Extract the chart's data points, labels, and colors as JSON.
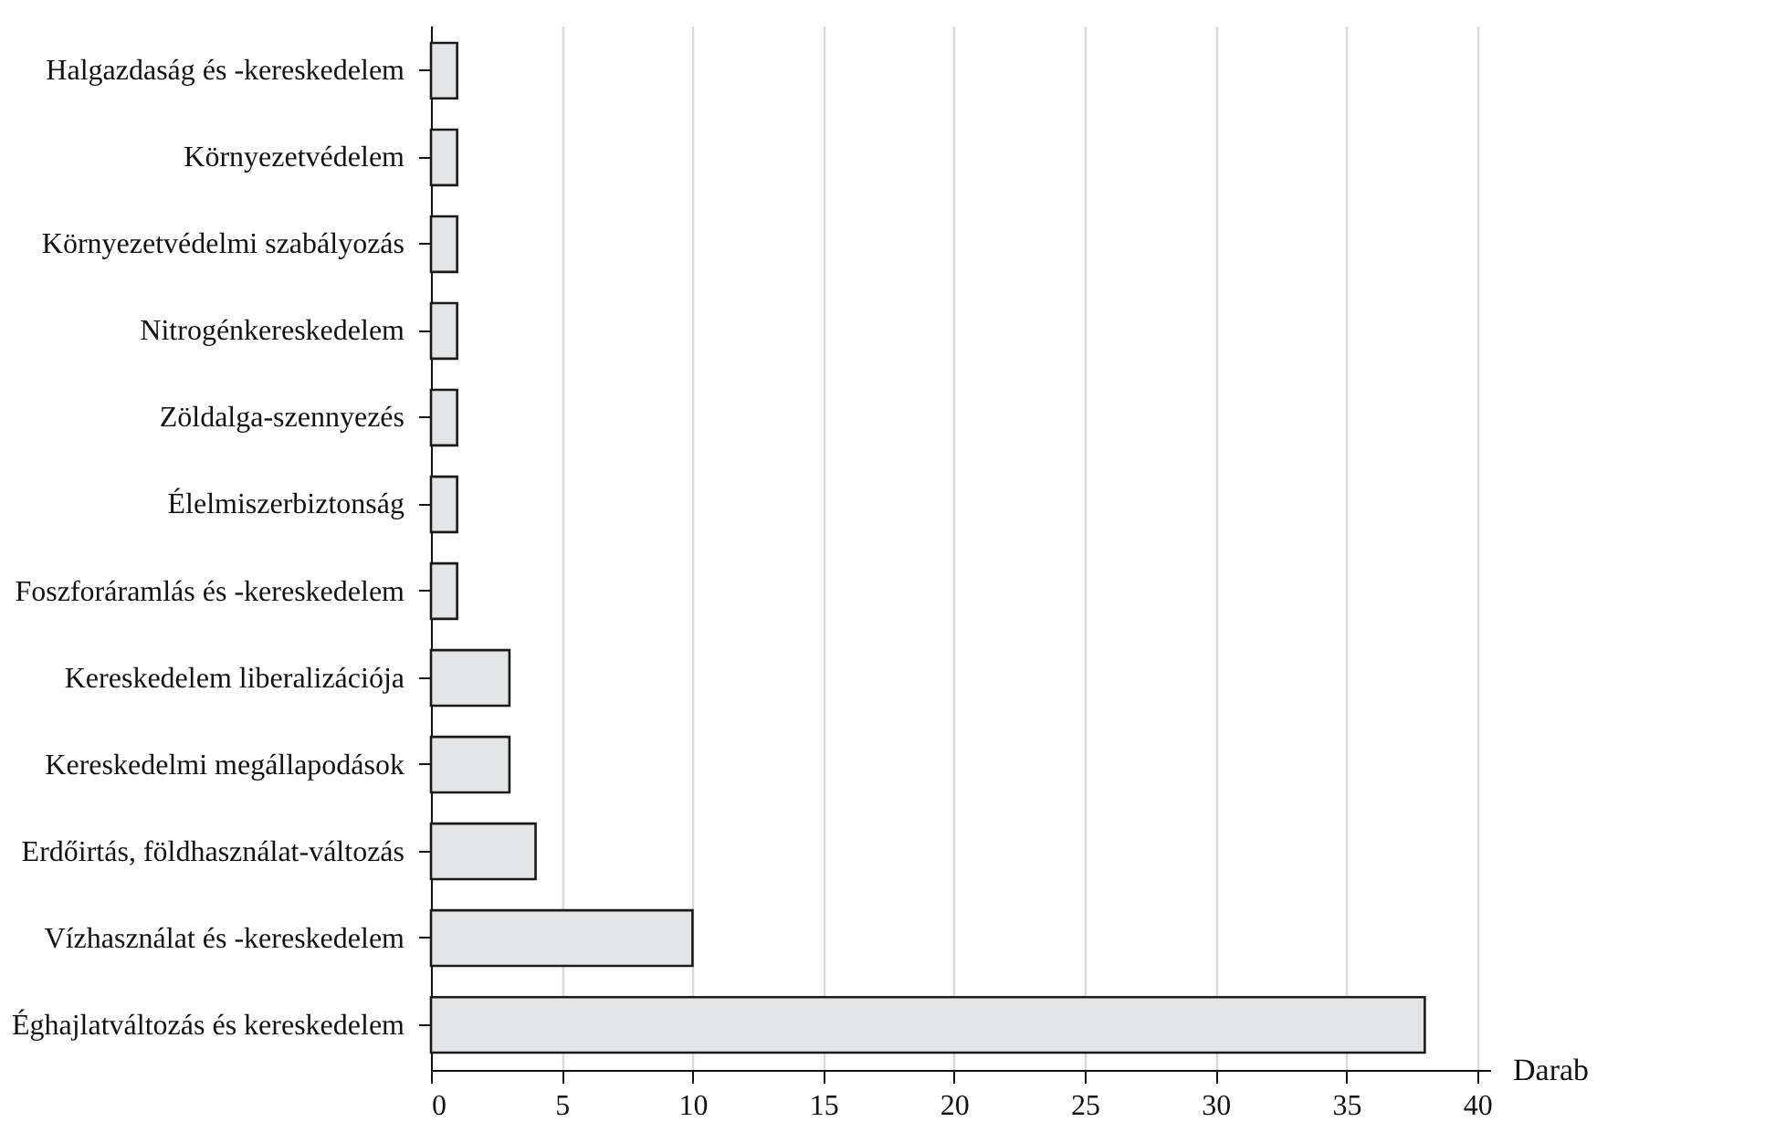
{
  "chart_data": {
    "type": "bar",
    "orientation": "horizontal",
    "xlabel": "Darab",
    "categories": [
      "Halgazdaság és -kereskedelem",
      "Környezetvédelem",
      "Környezetvédelmi szabályozás",
      "Nitrogénkereskedelem",
      "Zöldalga-szennyezés",
      "Élelmiszerbiztonság",
      "Foszforáramlás és -kereskedelem",
      "Kereskedelem liberalizációja",
      "Kereskedelmi megállapodások",
      "Erdőirtás, földhasználat-változás",
      "Vízhasználat és -kereskedelem",
      "Éghajlatváltozás és kereskedelem"
    ],
    "values": [
      1,
      1,
      1,
      1,
      1,
      1,
      1,
      3,
      3,
      4,
      10,
      38
    ],
    "color": "#e3e4e6",
    "xlim": [
      0,
      40.5
    ],
    "xticks": [
      0,
      5,
      10,
      15,
      20,
      25,
      30,
      35,
      40
    ],
    "grid": "x"
  }
}
